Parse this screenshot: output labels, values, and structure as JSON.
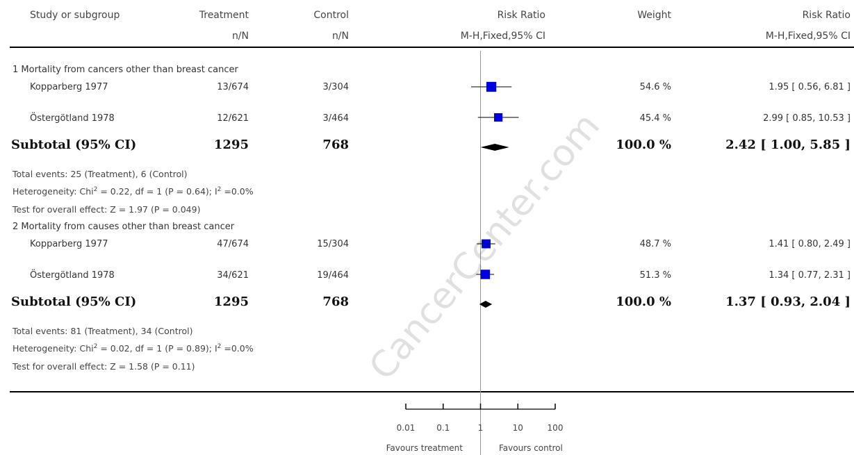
{
  "header": {
    "study": "Study or subgroup",
    "treatment": "Treatment",
    "treatment_sub": "n/N",
    "control": "Control",
    "control_sub": "n/N",
    "rr": "Risk Ratio",
    "rr_sub": "M-H,Fixed,95% CI",
    "weight": "Weight",
    "rr2": "Risk Ratio",
    "rr2_sub": "M-H,Fixed,95% CI"
  },
  "groups": [
    {
      "title": "1 Mortality from cancers other than breast cancer",
      "studies": [
        {
          "name": "Kopparberg 1977",
          "treatment": "13/674",
          "control": "3/304",
          "weight": "54.6 %",
          "ci": "1.95 [ 0.56, 6.81 ]"
        },
        {
          "name": "Östergötland 1978",
          "treatment": "12/621",
          "control": "3/464",
          "weight": "45.4 %",
          "ci": "2.99 [ 0.85, 10.53 ]"
        }
      ],
      "subtotal": {
        "label": "Subtotal (95% CI)",
        "treatment": "1295",
        "control": "768",
        "weight": "100.0 %",
        "ci": "2.42 [ 1.00, 5.85 ]"
      },
      "events": "Total events: 25 (Treatment), 6 (Control)",
      "het_prefix": "Heterogeneity: Chi",
      "het_mid": " = 0.22, df = 1 (P = 0.64); I",
      "het_suffix": " =0.0%",
      "sup": "2",
      "overall": "Test for overall effect: Z = 1.97 (P = 0.049)"
    },
    {
      "title": "2 Mortality from causes other than breast cancer",
      "studies": [
        {
          "name": "Kopparberg 1977",
          "treatment": "47/674",
          "control": "15/304",
          "weight": "48.7 %",
          "ci": "1.41 [ 0.80, 2.49 ]"
        },
        {
          "name": "Östergötland 1978",
          "treatment": "34/621",
          "control": "19/464",
          "weight": "51.3 %",
          "ci": "1.34 [ 0.77, 2.31 ]"
        }
      ],
      "subtotal": {
        "label": "Subtotal (95% CI)",
        "treatment": "1295",
        "control": "768",
        "weight": "100.0 %",
        "ci": "1.37 [ 0.93, 2.04 ]"
      },
      "events": "Total events: 81 (Treatment), 34 (Control)",
      "het_prefix": "Heterogeneity: Chi",
      "het_mid": " = 0.02, df = 1 (P = 0.89); I",
      "het_suffix": " =0.0%",
      "sup": "2",
      "overall": "Test for overall effect: Z = 1.58 (P = 0.11)"
    }
  ],
  "axis": {
    "favours_left": "Favours treatment",
    "favours_right": "Favours control"
  },
  "watermark": "CancerCenter.com",
  "colors": {
    "study_marker": "#0000dd",
    "diamond": "#000000",
    "line": "#000000",
    "ref_line": "#999999"
  },
  "chart_data": {
    "type": "forest",
    "scale": "log",
    "xlim": [
      0.01,
      100
    ],
    "ticks": [
      0.01,
      0.1,
      1,
      10,
      100
    ],
    "tick_labels": [
      "0.01",
      "0.1",
      "1",
      "10",
      "100"
    ],
    "reference": 1,
    "studies": [
      {
        "group": 1,
        "name": "Kopparberg 1977",
        "rr": 1.95,
        "lo": 0.56,
        "hi": 6.81,
        "weight": 54.6
      },
      {
        "group": 1,
        "name": "Östergötland 1978",
        "rr": 2.99,
        "lo": 0.85,
        "hi": 10.53,
        "weight": 45.4
      },
      {
        "group": 2,
        "name": "Kopparberg 1977",
        "rr": 1.41,
        "lo": 0.8,
        "hi": 2.49,
        "weight": 48.7
      },
      {
        "group": 2,
        "name": "Östergötland 1978",
        "rr": 1.34,
        "lo": 0.77,
        "hi": 2.31,
        "weight": 51.3
      }
    ],
    "subtotals": [
      {
        "group": 1,
        "rr": 2.42,
        "lo": 1.0,
        "hi": 5.85
      },
      {
        "group": 2,
        "rr": 1.37,
        "lo": 0.93,
        "hi": 2.04
      }
    ]
  }
}
